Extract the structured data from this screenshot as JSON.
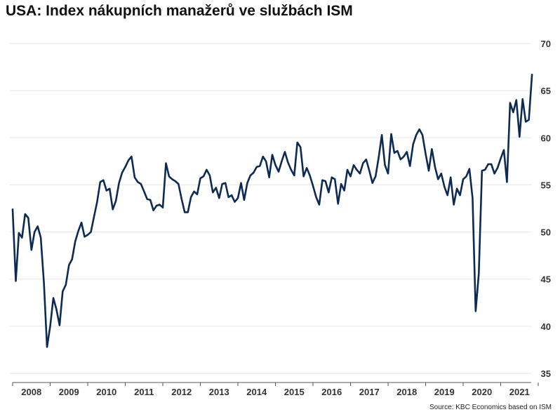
{
  "chart_data": {
    "type": "line",
    "title": "USA: Index nákupních manažerů ve službách ISM",
    "source": "Source: KBC Economics based on ISM",
    "xlabel": "",
    "ylabel": "",
    "ylim": [
      35,
      70
    ],
    "yticks": [
      35,
      40,
      45,
      50,
      55,
      60,
      65,
      70
    ],
    "y_axis_side": "right",
    "grid": true,
    "colors": {
      "line": "#0d2a52",
      "grid": "#e6e6e6",
      "axis": "#555555",
      "text": "#333333"
    },
    "x_ticks": [
      "2008",
      "2009",
      "2010",
      "2011",
      "2012",
      "2013",
      "2014",
      "2015",
      "2016",
      "2017",
      "2018",
      "2019",
      "2020",
      "2021"
    ],
    "start": "2008-01",
    "series": [
      {
        "values": [
          52.4,
          44.8,
          49.9,
          49.4,
          51.9,
          51.5,
          48.1,
          50.0,
          50.6,
          49.4,
          44.6,
          37.8,
          40.0,
          43.0,
          41.8,
          40.1,
          43.7,
          44.4,
          46.5,
          47.1,
          49.0,
          50.1,
          51.0,
          49.5,
          49.7,
          50.0,
          51.6,
          53.2,
          55.3,
          55.5,
          54.4,
          54.6,
          52.4,
          53.3,
          55.2,
          56.3,
          56.9,
          57.6,
          58.0,
          55.8,
          55.3,
          55.1,
          54.3,
          53.5,
          53.4,
          52.3,
          52.8,
          52.9,
          52.6,
          57.3,
          55.9,
          55.6,
          55.4,
          55.1,
          53.5,
          52.1,
          52.1,
          53.7,
          54.3,
          54.0,
          55.7,
          55.9,
          56.6,
          56.0,
          54.2,
          54.7,
          53.6,
          55.1,
          55.2,
          53.7,
          53.9,
          53.2,
          53.6,
          55.2,
          53.4,
          55.2,
          56.0,
          56.3,
          56.9,
          57.0,
          58.0,
          57.5,
          55.8,
          58.2,
          57.1,
          56.4,
          57.5,
          58.5,
          57.4,
          56.6,
          56.0,
          59.5,
          59.0,
          55.9,
          56.8,
          56.0,
          54.9,
          53.7,
          52.9,
          55.5,
          55.4,
          54.2,
          55.8,
          55.6,
          53.0,
          55.1,
          54.4,
          56.6,
          55.9,
          57.1,
          56.6,
          56.2,
          57.3,
          57.7,
          56.5,
          55.2,
          55.9,
          57.9,
          60.3,
          57.1,
          56.2,
          60.4,
          58.4,
          58.6,
          57.7,
          58.0,
          58.5,
          57.0,
          59.3,
          60.3,
          60.9,
          60.3,
          58.3,
          56.5,
          58.8,
          56.9,
          55.6,
          56.2,
          54.8,
          53.9,
          55.8,
          52.9,
          54.6,
          53.9,
          55.6,
          55.9,
          56.7,
          53.6,
          41.6,
          45.6,
          56.5,
          56.6,
          57.2,
          57.2,
          56.2,
          56.8,
          57.8,
          58.7,
          55.3,
          63.7,
          62.7,
          64.0,
          60.1,
          64.1,
          61.7,
          61.9,
          66.7
        ]
      }
    ]
  }
}
